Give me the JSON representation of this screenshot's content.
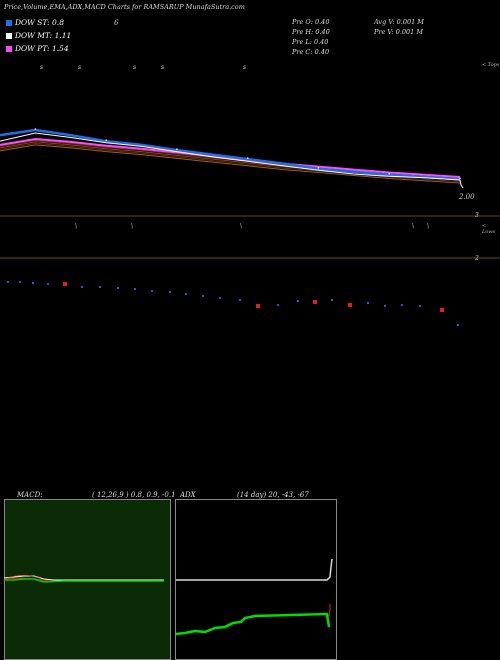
{
  "header": {
    "title": "Price,Volume,EMA,ADX,MACD Charts for RAMSARUP MunafaSutra.com"
  },
  "dow": [
    {
      "label": "DOW ST: 0.8",
      "color": "#1f6fe6"
    },
    {
      "label": "DOW MT: 1.11",
      "color": "#ffffff"
    },
    {
      "label": "DOW PT: 1.54",
      "color": "#ff4bff"
    }
  ],
  "stray_label": "6",
  "info": {
    "open": "Pre  O: 0.40",
    "high": "Pre  H: 0.40",
    "low": "Pre  L: 0.40",
    "close": "Pre  C: 0.40",
    "avg_vol": "Avg V: 0.001 M",
    "pre_vol": "Pre   V: 0.001 M"
  },
  "price_panel": {
    "top_label": "< Tops",
    "bottom_label": "< Lows",
    "last_price": "2.00",
    "right_tick_3": "3",
    "right_tick_2": "2"
  },
  "macd": {
    "label": "MACD:",
    "params": "( 12,26,9 ) 0.8,  0.9,  -0.1"
  },
  "adx": {
    "label": "ADX",
    "params": "(14  day) 20,  -43,  -67"
  },
  "colors": {
    "ema_short": "#1f6fe6",
    "ema_mid": "#ffffff",
    "ema_long": "#ff4bff",
    "macd_bg": "#0b2a06",
    "adx_green": "#00dd00",
    "volume_blue": "#2a5bd7",
    "volume_red": "#e02020"
  },
  "chart_data": {
    "type": "line",
    "title": "Price,Volume,EMA,ADX,MACD Charts for RAMSARUP MunafaSutra.com",
    "series": [
      {
        "name": "DOW ST",
        "values": [
          3.55,
          3.62,
          3.55,
          3.47,
          3.42,
          3.35,
          3.29,
          3.23,
          3.17,
          3.1,
          3.06,
          3.02,
          2.99,
          2.96
        ]
      },
      {
        "name": "DOW MT",
        "values": [
          3.47,
          3.58,
          3.52,
          3.45,
          3.4,
          3.33,
          3.26,
          3.2,
          3.14,
          3.08,
          3.03,
          3.0,
          2.98,
          2.95
        ]
      },
      {
        "name": "DOW PT",
        "values": [
          3.42,
          3.5,
          3.46,
          3.41,
          3.37,
          3.32,
          3.27,
          3.22,
          3.17,
          3.13,
          3.09,
          3.05,
          3.02,
          2.99
        ]
      }
    ],
    "price": {
      "last": 2.0,
      "right_ticks": [
        "3",
        "2"
      ]
    },
    "macd": {
      "macd": 0.8,
      "signal": 0.9,
      "histogram": -0.1
    },
    "adx": {
      "adx": 20,
      "di_plus": -43,
      "di_minus": -67
    },
    "grid": false,
    "legend": "top-left"
  }
}
